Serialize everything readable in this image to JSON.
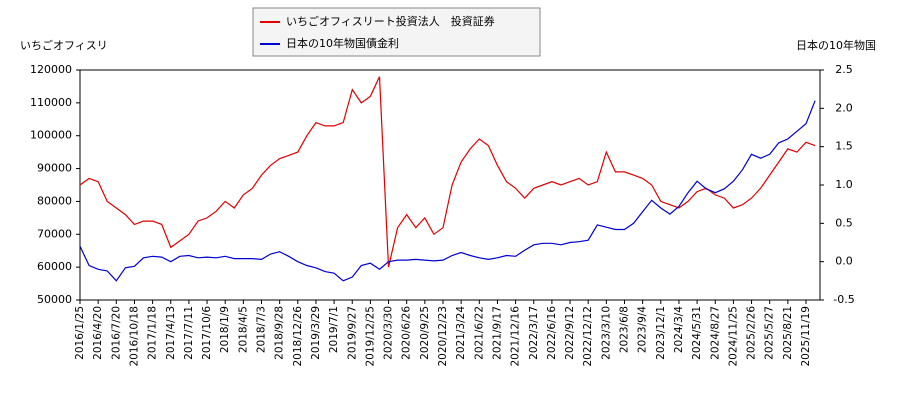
{
  "chart_data": {
    "type": "line",
    "y_title": "いちごオフィスリ",
    "y2_title": "日本の10年物国",
    "categories": [
      "2016/1/25",
      null,
      "2016/4/20",
      null,
      "2016/7/20",
      null,
      "2016/10/18",
      null,
      "2017/1/18",
      null,
      "2017/4/13",
      null,
      "2017/7/11",
      null,
      "2017/10/6",
      null,
      "2018/1/9",
      null,
      "2018/4/5",
      null,
      "2018/7/3",
      null,
      "2018/9/28",
      null,
      "2018/12/26",
      null,
      "2019/3/29",
      null,
      "2019/7/1",
      null,
      "2019/9/27",
      null,
      "2019/12/25",
      null,
      "2020/3/30",
      null,
      "2020/6/26",
      null,
      "2020/9/25",
      null,
      "2020/12/23",
      null,
      "2021/3/24",
      null,
      "2021/6/22",
      null,
      "2021/9/17",
      null,
      "2021/12/16",
      null,
      "2022/3/17",
      null,
      "2022/6/16",
      null,
      "2022/9/12",
      null,
      "2022/12/12",
      null,
      "2023/3/10",
      null,
      "2023/6/8",
      null,
      "2023/9/4",
      null,
      "2023/12/1",
      null,
      "2024/3/4",
      null,
      "2024/5/31",
      null,
      "2024/8/27",
      null,
      "2024/11/25",
      null,
      "2025/2/26",
      null,
      "2025/5/27",
      null,
      "2025/8/21",
      null,
      "2025/11/19",
      null
    ],
    "series": [
      {
        "name": "いちごオフィスリート投資法人　投資証券",
        "color": "#e00000",
        "axis": "y",
        "values": [
          85000,
          87000,
          86000,
          80000,
          78000,
          76000,
          73000,
          74000,
          74000,
          73000,
          66000,
          68000,
          70000,
          74000,
          75000,
          77000,
          80000,
          78000,
          82000,
          84000,
          88000,
          91000,
          93000,
          94000,
          95000,
          100000,
          104000,
          103000,
          103000,
          104000,
          114000,
          110000,
          112000,
          118000,
          60000,
          72000,
          76000,
          72000,
          75000,
          70000,
          72000,
          85000,
          92000,
          96000,
          99000,
          97000,
          91000,
          86000,
          84000,
          81000,
          84000,
          85000,
          86000,
          85000,
          86000,
          87000,
          85000,
          86000,
          95000,
          89000,
          89000,
          88000,
          87000,
          85000,
          80000,
          79000,
          78000,
          80000,
          83000,
          84000,
          82000,
          81000,
          78000,
          79000,
          81000,
          84000,
          88000,
          92000,
          96000,
          95000,
          98000,
          97000
        ]
      },
      {
        "name": "日本の10年物国債金利",
        "color": "#0000d0",
        "axis": "y2",
        "values": [
          0.2,
          -0.05,
          -0.1,
          -0.12,
          -0.25,
          -0.08,
          -0.06,
          0.05,
          0.07,
          0.06,
          0.0,
          0.07,
          0.08,
          0.05,
          0.06,
          0.05,
          0.07,
          0.04,
          0.04,
          0.04,
          0.03,
          0.1,
          0.13,
          0.07,
          0.0,
          -0.05,
          -0.08,
          -0.13,
          -0.15,
          -0.25,
          -0.2,
          -0.05,
          -0.02,
          -0.1,
          0.0,
          0.02,
          0.02,
          0.03,
          0.02,
          0.01,
          0.02,
          0.08,
          0.12,
          0.08,
          0.05,
          0.03,
          0.05,
          0.08,
          0.07,
          0.15,
          0.22,
          0.24,
          0.24,
          0.22,
          0.25,
          0.26,
          0.28,
          0.48,
          0.45,
          0.42,
          0.42,
          0.5,
          0.65,
          0.8,
          0.7,
          0.62,
          0.72,
          0.9,
          1.05,
          0.95,
          0.9,
          0.95,
          1.05,
          1.2,
          1.4,
          1.35,
          1.4,
          1.55,
          1.6,
          1.7,
          1.8,
          2.1
        ]
      }
    ],
    "ylim": [
      50000,
      120000
    ],
    "yticks": [
      50000,
      60000,
      70000,
      80000,
      90000,
      100000,
      110000,
      120000
    ],
    "y2lim": [
      -0.5,
      2.5
    ],
    "y2ticks": [
      -0.5,
      {
        "value": 0,
        "label": "0.0"
      },
      0.5,
      {
        "value": 1,
        "label": "1.0"
      },
      1.5,
      {
        "value": 2,
        "label": "2.0"
      },
      2.5
    ]
  }
}
